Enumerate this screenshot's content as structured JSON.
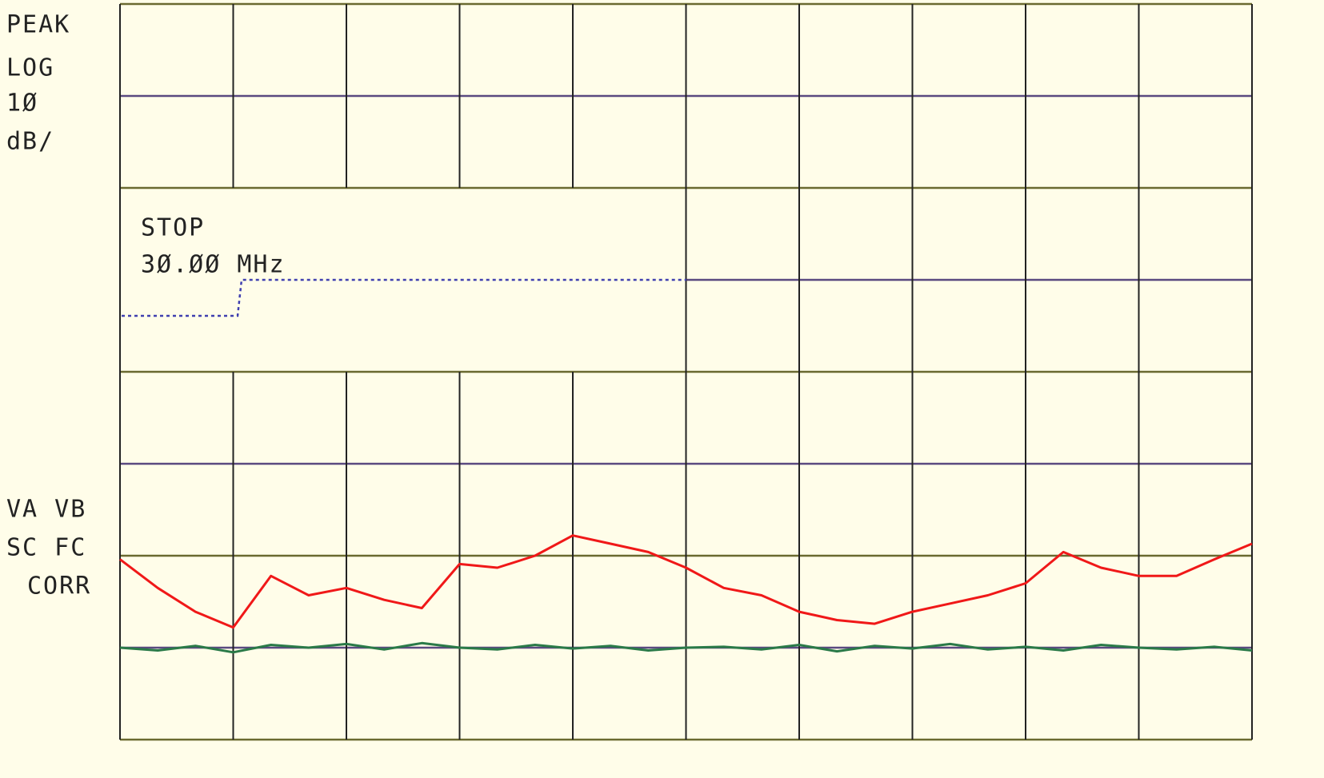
{
  "chart_data": {
    "type": "line",
    "annotations": {
      "mode": [
        "PEAK",
        "LOG",
        "1Ø",
        "dB/"
      ],
      "stop": [
        "STOP",
        "3Ø.ØØ MHz"
      ],
      "status": [
        "VA VB",
        "SC FC",
        "CORR"
      ]
    },
    "xlim": [
      0,
      10
    ],
    "ylim": [
      0,
      8
    ],
    "series": [
      {
        "color": "#f01818",
        "values": [
          1.96,
          1.65,
          1.39,
          1.22,
          1.78,
          1.57,
          1.65,
          1.52,
          1.43,
          1.91,
          1.87,
          2.0,
          2.22,
          2.13,
          2.04,
          1.87,
          1.65,
          1.57,
          1.39,
          1.3,
          1.26,
          1.39,
          1.48,
          1.57,
          1.7,
          2.04,
          1.87,
          1.78,
          1.78,
          1.96,
          2.13
        ]
      },
      {
        "color": "#2a7a48",
        "values": [
          1.0,
          0.97,
          1.02,
          0.95,
          1.03,
          1.0,
          1.04,
          0.98,
          1.05,
          1.0,
          0.98,
          1.03,
          0.99,
          1.02,
          0.97,
          1.0,
          1.01,
          0.98,
          1.03,
          0.96,
          1.02,
          0.99,
          1.04,
          0.98,
          1.01,
          0.97,
          1.03,
          1.0,
          0.98,
          1.01,
          0.97
        ]
      }
    ]
  }
}
